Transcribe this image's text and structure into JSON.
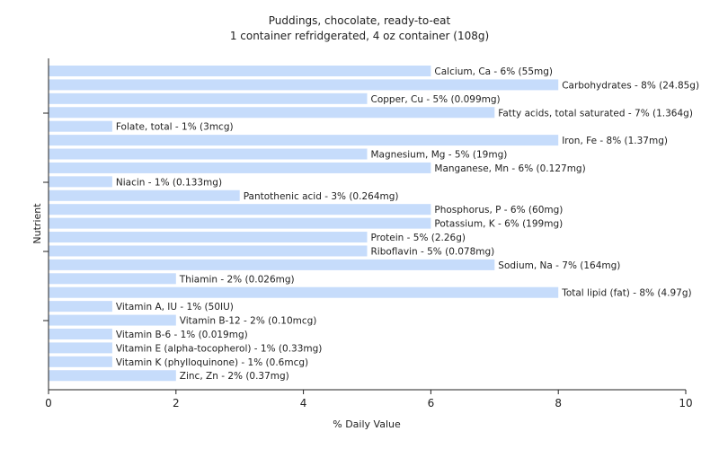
{
  "chart_data": {
    "type": "bar",
    "orientation": "horizontal",
    "title": "Puddings, chocolate, ready-to-eat",
    "subtitle": "1 container refridgerated, 4 oz container (108g)",
    "xlabel": "% Daily Value",
    "ylabel": "Nutrient",
    "xlim": [
      0,
      10
    ],
    "xticks": [
      "0",
      "2",
      "4",
      "6",
      "8",
      "10"
    ],
    "bar_color": "#c6dcfb",
    "grid": false,
    "categories": [
      "Calcium, Ca",
      "Carbohydrates",
      "Copper, Cu",
      "Fatty acids, total saturated",
      "Folate, total",
      "Iron, Fe",
      "Magnesium, Mg",
      "Manganese, Mn",
      "Niacin",
      "Pantothenic acid",
      "Phosphorus, P",
      "Potassium, K",
      "Protein",
      "Riboflavin",
      "Sodium, Na",
      "Thiamin",
      "Total lipid (fat)",
      "Vitamin A, IU",
      "Vitamin B-12",
      "Vitamin B-6",
      "Vitamin E (alpha-tocopherol)",
      "Vitamin K (phylloquinone)",
      "Zinc, Zn"
    ],
    "values": [
      6,
      8,
      5,
      7,
      1,
      8,
      5,
      6,
      1,
      3,
      6,
      6,
      5,
      5,
      7,
      2,
      8,
      1,
      2,
      1,
      1,
      1,
      2
    ],
    "labels": [
      "Calcium, Ca - 6% (55mg)",
      "Carbohydrates - 8% (24.85g)",
      "Copper, Cu - 5% (0.099mg)",
      "Fatty acids, total saturated - 7% (1.364g)",
      "Folate, total - 1% (3mcg)",
      "Iron, Fe - 8% (1.37mg)",
      "Magnesium, Mg - 5% (19mg)",
      "Manganese, Mn - 6% (0.127mg)",
      "Niacin - 1% (0.133mg)",
      "Pantothenic acid - 3% (0.264mg)",
      "Phosphorus, P - 6% (60mg)",
      "Potassium, K - 6% (199mg)",
      "Protein - 5% (2.26g)",
      "Riboflavin - 5% (0.078mg)",
      "Sodium, Na - 7% (164mg)",
      "Thiamin - 2% (0.026mg)",
      "Total lipid (fat) - 8% (4.97g)",
      "Vitamin A, IU - 1% (50IU)",
      "Vitamin B-12 - 2% (0.10mcg)",
      "Vitamin B-6 - 1% (0.019mg)",
      "Vitamin E (alpha-tocopherol) - 1% (0.33mg)",
      "Vitamin K (phylloquinone) - 1% (0.6mcg)",
      "Zinc, Zn - 2% (0.37mg)"
    ]
  }
}
